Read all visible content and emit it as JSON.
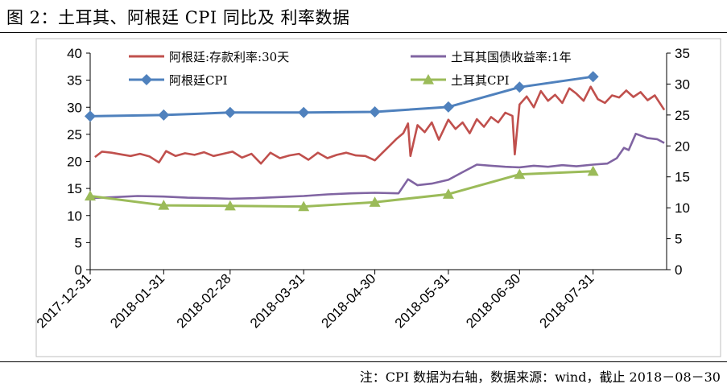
{
  "title": "图 2：土耳其、阿根廷 CPI 同比及 利率数据",
  "source_note": "注：CPI 数据为右轴，数据来源：wind，截止 2018－08－30",
  "chart_data": {
    "type": "line",
    "x_ticks": [
      "2017-12-31",
      "2018-01-31",
      "2018-02-28",
      "2018-03-31",
      "2018-04-30",
      "2018-05-31",
      "2018-06-30",
      "2018-07-31"
    ],
    "x_range": [
      "2017-12-31",
      "2018-08-31"
    ],
    "y_left": {
      "min": 0,
      "max": 40,
      "ticks": [
        0,
        5,
        10,
        15,
        20,
        25,
        30,
        35,
        40
      ]
    },
    "y_right": {
      "min": 0,
      "max": 35,
      "ticks": [
        0,
        5,
        10,
        15,
        20,
        25,
        30,
        35
      ]
    },
    "grid": false,
    "legend_position": "top",
    "series": [
      {
        "name": "阿根廷:存款利率:30天",
        "axis": "left",
        "color": "#c0504d",
        "x": [
          "2018-01-02",
          "2018-01-05",
          "2018-01-09",
          "2018-01-13",
          "2018-01-17",
          "2018-01-21",
          "2018-01-25",
          "2018-01-29",
          "2018-02-01",
          "2018-02-05",
          "2018-02-09",
          "2018-02-13",
          "2018-02-17",
          "2018-02-21",
          "2018-02-25",
          "2018-03-01",
          "2018-03-05",
          "2018-03-09",
          "2018-03-13",
          "2018-03-17",
          "2018-03-21",
          "2018-03-25",
          "2018-03-29",
          "2018-04-02",
          "2018-04-06",
          "2018-04-10",
          "2018-04-14",
          "2018-04-18",
          "2018-04-22",
          "2018-04-26",
          "2018-04-30",
          "2018-05-03",
          "2018-05-06",
          "2018-05-09",
          "2018-05-12",
          "2018-05-14",
          "2018-05-15",
          "2018-05-18",
          "2018-05-21",
          "2018-05-24",
          "2018-05-27",
          "2018-05-31",
          "2018-06-03",
          "2018-06-06",
          "2018-06-09",
          "2018-06-12",
          "2018-06-15",
          "2018-06-18",
          "2018-06-21",
          "2018-06-24",
          "2018-06-27",
          "2018-06-28",
          "2018-06-30",
          "2018-07-03",
          "2018-07-06",
          "2018-07-09",
          "2018-07-12",
          "2018-07-15",
          "2018-07-18",
          "2018-07-21",
          "2018-07-24",
          "2018-07-27",
          "2018-07-30",
          "2018-08-02",
          "2018-08-05",
          "2018-08-08",
          "2018-08-11",
          "2018-08-14",
          "2018-08-17",
          "2018-08-20",
          "2018-08-23",
          "2018-08-26",
          "2018-08-30"
        ],
        "values": [
          20.8,
          21.8,
          21.6,
          21.3,
          21.0,
          21.4,
          20.9,
          19.8,
          21.9,
          21.0,
          21.5,
          21.2,
          21.7,
          21.0,
          21.4,
          21.8,
          20.7,
          21.4,
          19.6,
          21.6,
          20.6,
          21.1,
          21.4,
          20.3,
          21.6,
          20.6,
          21.2,
          21.6,
          21.1,
          21.0,
          20.2,
          21.5,
          22.8,
          24.1,
          25.2,
          27.0,
          21.0,
          26.7,
          25.4,
          27.2,
          24.0,
          27.7,
          26.0,
          27.2,
          25.2,
          27.8,
          26.4,
          28.2,
          27.2,
          29.0,
          28.4,
          21.3,
          30.5,
          32.0,
          30.0,
          33.0,
          31.2,
          32.3,
          30.8,
          33.5,
          32.5,
          31.2,
          33.8,
          31.5,
          30.8,
          32.2,
          31.8,
          33.1,
          31.9,
          32.8,
          31.3,
          32.2,
          29.5
        ]
      },
      {
        "name": "土耳其国债收益率:1年",
        "axis": "left",
        "color": "#8064a2",
        "x": [
          "2017-12-31",
          "2018-01-10",
          "2018-01-20",
          "2018-01-31",
          "2018-02-10",
          "2018-02-20",
          "2018-02-28",
          "2018-03-10",
          "2018-03-20",
          "2018-03-31",
          "2018-04-10",
          "2018-04-20",
          "2018-04-30",
          "2018-05-10",
          "2018-05-14",
          "2018-05-18",
          "2018-05-24",
          "2018-05-31",
          "2018-06-06",
          "2018-06-12",
          "2018-06-18",
          "2018-06-24",
          "2018-06-30",
          "2018-07-06",
          "2018-07-12",
          "2018-07-18",
          "2018-07-24",
          "2018-07-31",
          "2018-08-06",
          "2018-08-10",
          "2018-08-13",
          "2018-08-15",
          "2018-08-18",
          "2018-08-23",
          "2018-08-27",
          "2018-08-30"
        ],
        "values": [
          13.2,
          13.4,
          13.6,
          13.5,
          13.3,
          13.2,
          13.1,
          13.2,
          13.4,
          13.6,
          13.9,
          14.1,
          14.2,
          14.1,
          16.7,
          15.6,
          15.9,
          16.6,
          18.0,
          19.4,
          19.2,
          19.0,
          18.9,
          19.2,
          19.0,
          19.3,
          19.1,
          19.4,
          19.6,
          20.6,
          22.5,
          22.1,
          25.1,
          24.3,
          24.1,
          23.4
        ]
      },
      {
        "name": "阿根廷CPI",
        "axis": "right",
        "color": "#4f81bd",
        "marker": "diamond",
        "x": [
          "2017-12-31",
          "2018-01-31",
          "2018-02-28",
          "2018-03-31",
          "2018-04-30",
          "2018-05-31",
          "2018-06-30",
          "2018-07-31"
        ],
        "values": [
          24.8,
          25.0,
          25.4,
          25.4,
          25.5,
          26.3,
          29.5,
          31.2
        ]
      },
      {
        "name": "土耳其CPI",
        "axis": "right",
        "color": "#9bbb59",
        "marker": "triangle",
        "x": [
          "2017-12-31",
          "2018-01-31",
          "2018-02-28",
          "2018-03-31",
          "2018-04-30",
          "2018-05-31",
          "2018-06-30",
          "2018-07-31"
        ],
        "values": [
          11.9,
          10.4,
          10.3,
          10.2,
          10.9,
          12.2,
          15.4,
          15.9
        ]
      }
    ]
  }
}
